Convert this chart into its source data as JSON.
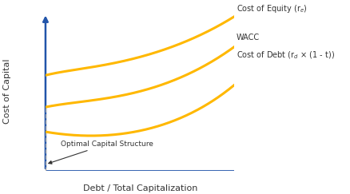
{
  "bg_color": "#ffffff",
  "axis_color": "#2255aa",
  "curve_color": "#FFB800",
  "curve_linewidth": 2.2,
  "dashed_color": "#aaaaaa",
  "text_color": "#333333",
  "xlabel": "Debt / Total Capitalization",
  "ylabel": "Cost of Capital",
  "label_equity": "Cost of Equity (r$_e$)",
  "label_wacc": "WACC",
  "label_debt": "Cost of Debt (r$_d$ × (1 - t))",
  "label_optimal": "Optimal Capital Structure",
  "figsize": [
    4.38,
    2.43
  ],
  "dpi": 100
}
